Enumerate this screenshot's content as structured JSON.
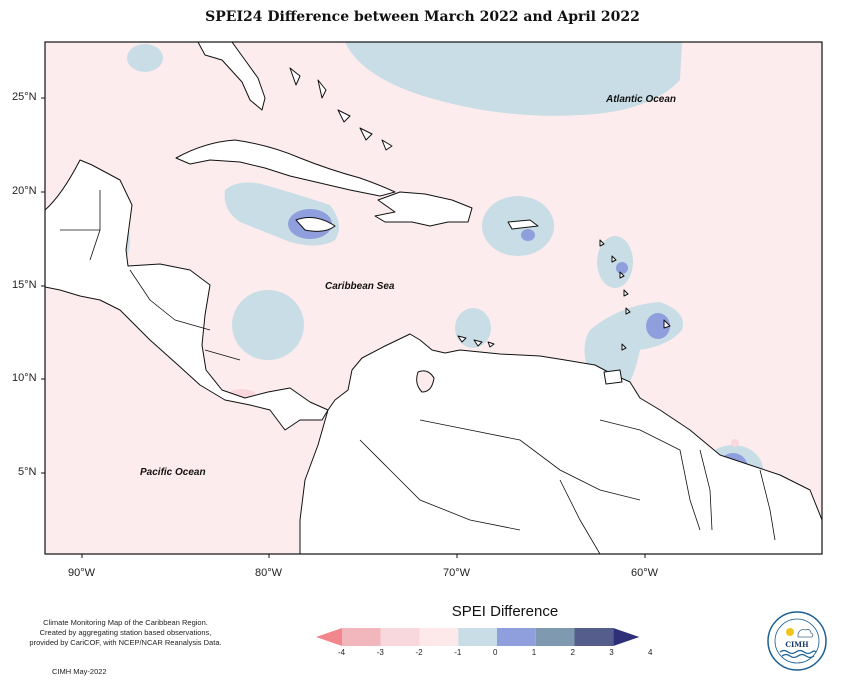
{
  "title": "SPEI24 Difference between March 2022 and April 2022",
  "axes": {
    "latitude_labels": [
      "25°N",
      "20°N",
      "15°N",
      "10°N",
      "5°N"
    ],
    "longitude_labels": [
      "90°W",
      "80°W",
      "70°W",
      "60°W"
    ]
  },
  "places": {
    "atlantic": "Atlantic Ocean",
    "caribbean": "Caribbean Sea",
    "pacific": "Pacific Ocean"
  },
  "credit": {
    "line1": "Climate Monitoring Map of the Caribbean Region.",
    "line2": "Created by aggregating station based observations,",
    "line3": "provided by CariCOF, with NCEP/NCAR Reanalysis Data.",
    "date": "CIMH May-2022"
  },
  "legend": {
    "title": "SPEI Difference",
    "ticks": [
      "-4",
      "-3",
      "-2",
      "-1",
      "0",
      "1",
      "2",
      "3",
      "4"
    ],
    "colors": [
      "#f2868d",
      "#f1b7bc",
      "#f9d8dd",
      "#fde9ea",
      "#c9dde6",
      "#8f9fdd",
      "#7f99b1",
      "#555d8c",
      "#2e2f78"
    ],
    "background_color": "#fdeced"
  },
  "logo": {
    "text": "CIMH",
    "icon": "cimh-logo-icon"
  }
}
